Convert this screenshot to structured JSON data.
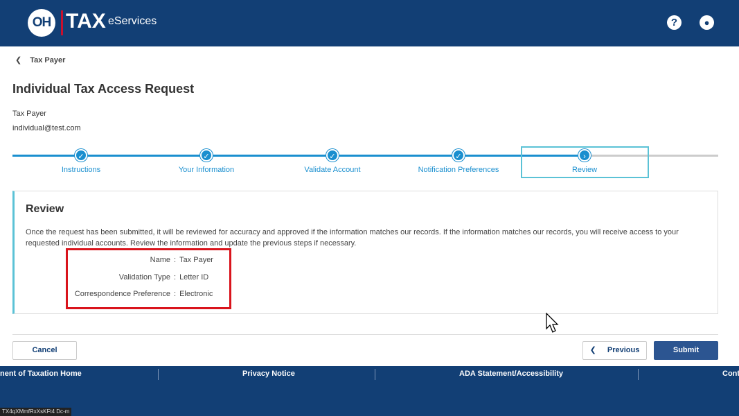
{
  "header": {
    "logo_oh": "OH",
    "logo_tax": "TAX",
    "logo_sub": "eServices",
    "help_icon": "question-circle-icon",
    "account_icon": "user-circle-icon"
  },
  "back_link": "Tax Payer",
  "page_title": "Individual Tax Access Request",
  "user": {
    "name": "Tax Payer",
    "email": "individual@test.com"
  },
  "steps": [
    {
      "label": "Instructions",
      "status": "complete"
    },
    {
      "label": "Your Information",
      "status": "complete"
    },
    {
      "label": "Validate Account",
      "status": "complete"
    },
    {
      "label": "Notification Preferences",
      "status": "complete"
    },
    {
      "label": "Review",
      "status": "current"
    }
  ],
  "review": {
    "title": "Review",
    "description": "Once the request has been submitted, it will be reviewed for accuracy and approved if the information matches our records. If the information matches our records, you will receive access to your requested individual accounts. Review the information and update the previous steps if necessary.",
    "fields": [
      {
        "label": "Name",
        "value": "Tax Payer"
      },
      {
        "label": "Validation Type",
        "value": "Letter ID"
      },
      {
        "label": "Correspondence Preference",
        "value": "Electronic"
      }
    ]
  },
  "buttons": {
    "cancel": "Cancel",
    "previous": "Previous",
    "submit": "Submit"
  },
  "footer": [
    "nent of Taxation Home",
    "Privacy Notice",
    "ADA Statement/Accessibility",
    "Cont"
  ],
  "token": "TX4qXMmfRxXsKFt4 Dc-m",
  "colors": {
    "header": "#123f75",
    "accent": "#1a8fcf",
    "submit": "#2c5591",
    "highlight": "#d9141c"
  }
}
